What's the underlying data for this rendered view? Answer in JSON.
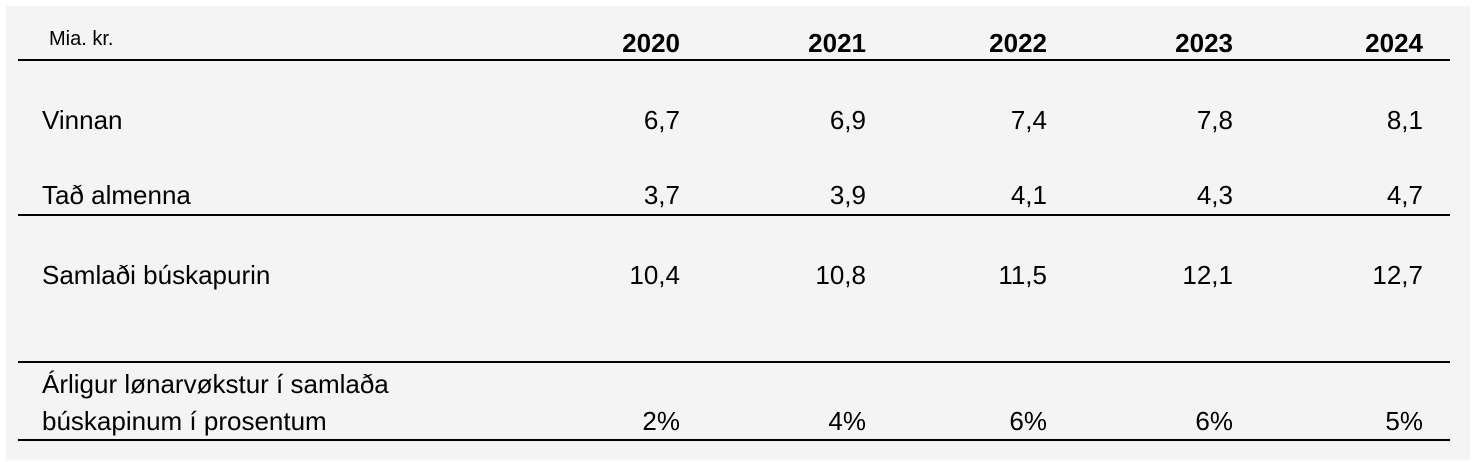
{
  "table": {
    "unit_label": "Mia. kr.",
    "years": [
      "2020",
      "2021",
      "2022",
      "2023",
      "2024"
    ],
    "rows": [
      {
        "label": "Vinnan",
        "values": [
          "6,7",
          "6,9",
          "7,4",
          "7,8",
          "8,1"
        ]
      },
      {
        "label": "Tað almenna",
        "values": [
          "3,7",
          "3,9",
          "4,1",
          "4,3",
          "4,7"
        ]
      },
      {
        "label": "Samlaði búskapurin",
        "values": [
          "10,4",
          "10,8",
          "11,5",
          "12,1",
          "12,7"
        ]
      }
    ],
    "growth_row": {
      "label_line1": "Árligur lønarvøkstur í samlaða",
      "label_line2": "búskapinum í prosentum",
      "values": [
        "2%",
        "4%",
        "6%",
        "6%",
        "5%"
      ]
    }
  }
}
